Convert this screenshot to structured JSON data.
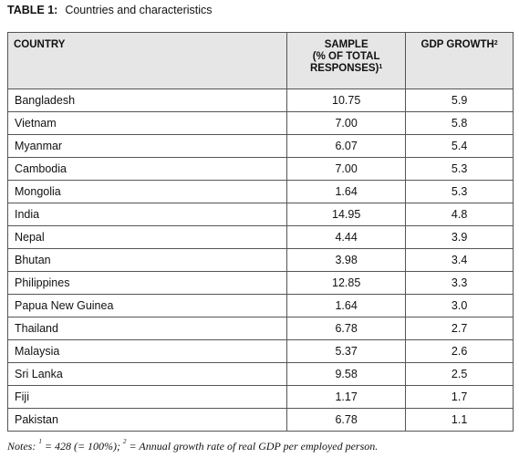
{
  "caption": {
    "label": "TABLE 1:",
    "text": "Countries and characteristics"
  },
  "table": {
    "headers": [
      {
        "lines": [
          "COUNTRY"
        ]
      },
      {
        "lines": [
          "SAMPLE",
          "(% OF TOTAL",
          "RESPONSES)"
        ],
        "sup": "1"
      },
      {
        "lines": [
          "GDP GROWTH"
        ],
        "sup": "2"
      }
    ],
    "rows": [
      [
        "Bangladesh",
        "10.75",
        "5.9"
      ],
      [
        "Vietnam",
        "7.00",
        "5.8"
      ],
      [
        "Myanmar",
        "6.07",
        "5.4"
      ],
      [
        "Cambodia",
        "7.00",
        "5.3"
      ],
      [
        "Mongolia",
        "1.64",
        "5.3"
      ],
      [
        "India",
        "14.95",
        "4.8"
      ],
      [
        "Nepal",
        "4.44",
        "3.9"
      ],
      [
        "Bhutan",
        "3.98",
        "3.4"
      ],
      [
        "Philippines",
        "12.85",
        "3.3"
      ],
      [
        "Papua New Guinea",
        "1.64",
        "3.0"
      ],
      [
        "Thailand",
        "6.78",
        "2.7"
      ],
      [
        "Malaysia",
        "5.37",
        "2.6"
      ],
      [
        "Sri Lanka",
        "9.58",
        "2.5"
      ],
      [
        "Fiji",
        "1.17",
        "1.7"
      ],
      [
        "Pakistan",
        "6.78",
        "1.1"
      ]
    ]
  },
  "notes": {
    "label": "Notes:",
    "items": [
      {
        "sup": "1",
        "text": "= 428 (= 100%);"
      },
      {
        "sup": "2",
        "text": "=  Annual growth rate of real GDP per employed person."
      }
    ]
  }
}
